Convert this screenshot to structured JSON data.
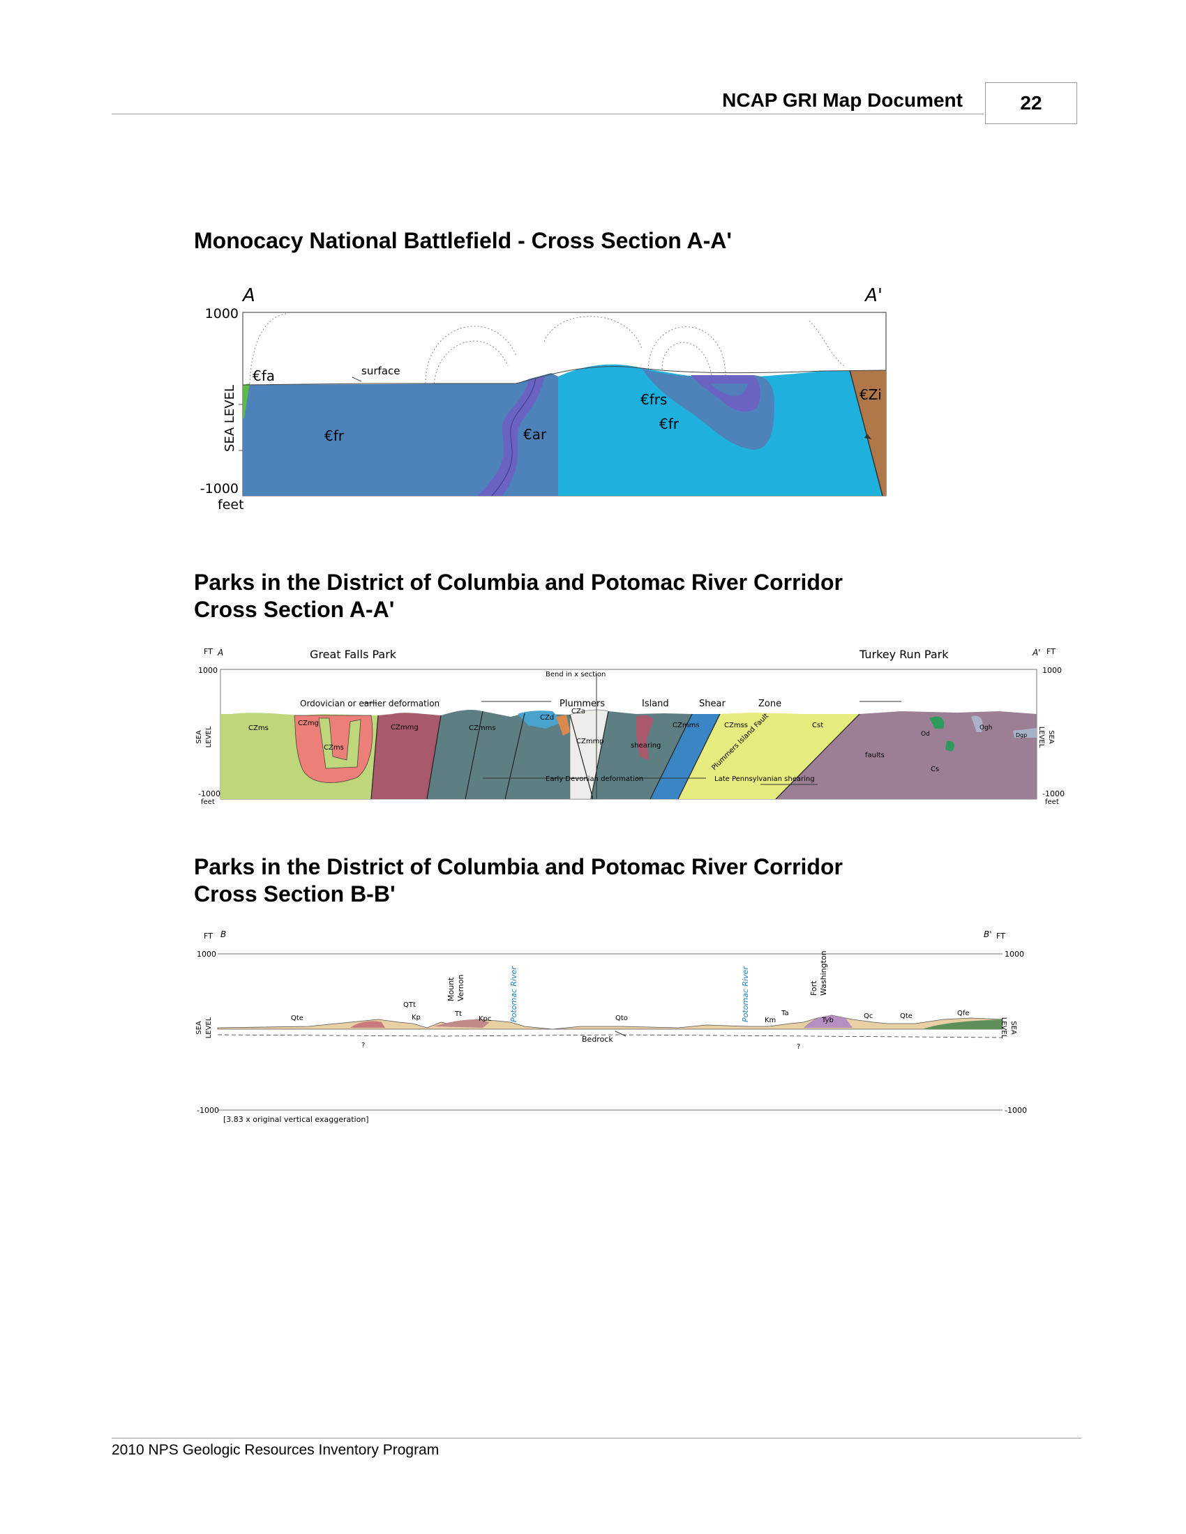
{
  "header": {
    "title": "NCAP GRI Map Document",
    "page_number": "22"
  },
  "footer": {
    "text": "2010 NPS Geologic Resources Inventory Program"
  },
  "section1": {
    "title": "Monocacy National Battlefield - Cross Section A-A'",
    "label_left": "A",
    "label_right": "A'",
    "y_top": "1000",
    "y_bottom": "-1000",
    "unit": "feet",
    "sea_level": "SEA LEVEL",
    "surface": "surface",
    "units": [
      "€fa",
      "€fr",
      "€ar",
      "€frs",
      "€fr",
      "€Zi"
    ],
    "colors": {
      "fr": "#4e82bb",
      "ar": "#1fb0de",
      "frs": "#6b63c2",
      "Zi": "#b07848",
      "fa": "#5fb84a"
    }
  },
  "section2": {
    "title_line1": "Parks in the District of Columbia and Potomac River Corridor",
    "title_line2": "Cross Section A-A'",
    "label_left": "A",
    "label_right": "A'",
    "ft": "FT",
    "y_top": "1000",
    "y_bottom": "-1000",
    "feet": "feet",
    "sea": "SEA",
    "level": "LEVEL",
    "park_left": "Great Falls Park",
    "park_right": "Turkey Run Park",
    "bend": "Bend in x section",
    "ordovician": "Ordovician or earlier deformation",
    "plummers_zone": [
      "Plummers",
      "Island",
      "Shear",
      "Zone"
    ],
    "early_devonian": "Early Devonian deformation",
    "late_penn": "Late Pennsylvanian shearing",
    "fault": "Plummers Island Fault",
    "faults": "faults",
    "shearing": "shearing",
    "units": [
      "CZms",
      "CZmg",
      "CZms",
      "CZmmg",
      "CZmms",
      "CZd",
      "CZa",
      "CZmmp",
      "CZmms",
      "CZmss",
      "Cst",
      "Cs",
      "Od",
      "Ogh",
      "Dgp"
    ],
    "colors": {
      "CZms": "#bfd67a",
      "CZmg": "#ec7f77",
      "CZmmg": "#a85a6c",
      "CZmms": "#5d7e82",
      "CZmss": "#3a86c4",
      "Cst": "#e7ec7e",
      "Cs": "#9c7f94",
      "CZd": "#4aa2cf",
      "CZmmp": "#ededea"
    }
  },
  "section3": {
    "title_line1": "Parks in the District of Columbia and Potomac River Corridor",
    "title_line2": "Cross Section B-B'",
    "label_left": "B",
    "label_right": "B'",
    "ft": "FT",
    "y_top": "1000",
    "y_bottom": "-1000",
    "sea": "SEA",
    "level": "LEVEL",
    "mount_vernon": [
      "Mount",
      "Vernon"
    ],
    "fort_washington": [
      "Fort",
      "Washington"
    ],
    "potomac": "Potomac River",
    "bedrock": "Bedrock",
    "question": "?",
    "units": [
      "Qte",
      "QTt",
      "Kp",
      "Tt",
      "Kpc",
      "Qto",
      "Km",
      "Ta",
      "Tyb",
      "Qc",
      "Qte",
      "Qfe"
    ],
    "exaggeration": "[3.83 x original vertical exaggeration]"
  }
}
